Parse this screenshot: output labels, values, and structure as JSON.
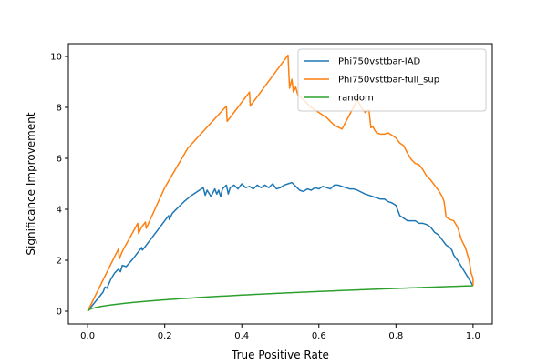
{
  "chart_data": {
    "type": "line",
    "xlabel": "True Positive Rate",
    "ylabel": "Significance Improvement",
    "xlim": [
      -0.05,
      1.05
    ],
    "ylim": [
      -0.5,
      10.5
    ],
    "x_ticks": [
      0.0,
      0.2,
      0.4,
      0.6,
      0.8,
      1.0
    ],
    "x_tick_labels": [
      "0.0",
      "0.2",
      "0.4",
      "0.6",
      "0.8",
      "1.0"
    ],
    "y_ticks": [
      0,
      2,
      4,
      6,
      8,
      10
    ],
    "y_tick_labels": [
      "0",
      "2",
      "4",
      "6",
      "8",
      "10"
    ],
    "grid": false,
    "legend_position": "top-right",
    "series": [
      {
        "name": "Phi750vsttbar-IAD",
        "color": "#1f77b4",
        "points": [
          [
            0.0,
            0.0
          ],
          [
            0.04,
            0.75
          ],
          [
            0.045,
            0.95
          ],
          [
            0.05,
            0.9
          ],
          [
            0.06,
            1.25
          ],
          [
            0.07,
            1.5
          ],
          [
            0.08,
            1.65
          ],
          [
            0.085,
            1.55
          ],
          [
            0.09,
            1.8
          ],
          [
            0.1,
            1.75
          ],
          [
            0.12,
            2.1
          ],
          [
            0.13,
            2.3
          ],
          [
            0.14,
            2.5
          ],
          [
            0.142,
            2.4
          ],
          [
            0.15,
            2.55
          ],
          [
            0.18,
            3.15
          ],
          [
            0.2,
            3.55
          ],
          [
            0.21,
            3.75
          ],
          [
            0.212,
            3.6
          ],
          [
            0.22,
            3.85
          ],
          [
            0.25,
            4.3
          ],
          [
            0.27,
            4.55
          ],
          [
            0.29,
            4.75
          ],
          [
            0.3,
            4.85
          ],
          [
            0.305,
            4.55
          ],
          [
            0.31,
            4.75
          ],
          [
            0.32,
            4.5
          ],
          [
            0.33,
            4.8
          ],
          [
            0.335,
            4.6
          ],
          [
            0.34,
            4.75
          ],
          [
            0.345,
            4.5
          ],
          [
            0.35,
            4.8
          ],
          [
            0.36,
            4.95
          ],
          [
            0.365,
            4.6
          ],
          [
            0.37,
            4.85
          ],
          [
            0.38,
            4.95
          ],
          [
            0.39,
            4.8
          ],
          [
            0.4,
            5.0
          ],
          [
            0.41,
            4.85
          ],
          [
            0.42,
            4.9
          ],
          [
            0.43,
            4.8
          ],
          [
            0.44,
            4.95
          ],
          [
            0.45,
            4.85
          ],
          [
            0.46,
            4.95
          ],
          [
            0.47,
            4.85
          ],
          [
            0.48,
            5.0
          ],
          [
            0.49,
            4.8
          ],
          [
            0.5,
            4.85
          ],
          [
            0.51,
            4.95
          ],
          [
            0.52,
            5.0
          ],
          [
            0.53,
            5.05
          ],
          [
            0.54,
            4.9
          ],
          [
            0.55,
            4.75
          ],
          [
            0.56,
            4.7
          ],
          [
            0.57,
            4.8
          ],
          [
            0.58,
            4.75
          ],
          [
            0.59,
            4.85
          ],
          [
            0.6,
            4.8
          ],
          [
            0.61,
            4.9
          ],
          [
            0.62,
            4.85
          ],
          [
            0.63,
            4.8
          ],
          [
            0.64,
            4.95
          ],
          [
            0.65,
            4.95
          ],
          [
            0.66,
            4.9
          ],
          [
            0.67,
            4.85
          ],
          [
            0.68,
            4.8
          ],
          [
            0.69,
            4.8
          ],
          [
            0.7,
            4.75
          ],
          [
            0.72,
            4.6
          ],
          [
            0.73,
            4.55
          ],
          [
            0.74,
            4.5
          ],
          [
            0.75,
            4.45
          ],
          [
            0.76,
            4.4
          ],
          [
            0.77,
            4.4
          ],
          [
            0.78,
            4.3
          ],
          [
            0.79,
            4.25
          ],
          [
            0.8,
            4.15
          ],
          [
            0.81,
            3.75
          ],
          [
            0.82,
            3.65
          ],
          [
            0.83,
            3.55
          ],
          [
            0.84,
            3.55
          ],
          [
            0.85,
            3.55
          ],
          [
            0.86,
            3.45
          ],
          [
            0.87,
            3.45
          ],
          [
            0.88,
            3.4
          ],
          [
            0.89,
            3.3
          ],
          [
            0.9,
            3.1
          ],
          [
            0.91,
            3.0
          ],
          [
            0.92,
            2.8
          ],
          [
            0.93,
            2.6
          ],
          [
            0.94,
            2.5
          ],
          [
            0.945,
            2.4
          ],
          [
            0.95,
            2.2
          ],
          [
            0.96,
            2.0
          ],
          [
            1.0,
            1.0
          ]
        ]
      },
      {
        "name": "Phi750vsttbar-full_sup",
        "color": "#ff7f0e",
        "points": [
          [
            0.0,
            0.0
          ],
          [
            0.08,
            2.45
          ],
          [
            0.082,
            2.05
          ],
          [
            0.09,
            2.35
          ],
          [
            0.13,
            3.45
          ],
          [
            0.132,
            3.05
          ],
          [
            0.14,
            3.3
          ],
          [
            0.15,
            3.5
          ],
          [
            0.152,
            3.25
          ],
          [
            0.2,
            4.85
          ],
          [
            0.26,
            6.4
          ],
          [
            0.36,
            8.05
          ],
          [
            0.362,
            7.45
          ],
          [
            0.42,
            8.6
          ],
          [
            0.422,
            8.05
          ],
          [
            0.52,
            10.05
          ],
          [
            0.524,
            8.75
          ],
          [
            0.53,
            9.1
          ],
          [
            0.534,
            8.6
          ],
          [
            0.54,
            8.8
          ],
          [
            0.545,
            8.5
          ],
          [
            0.55,
            8.45
          ],
          [
            0.58,
            8.0
          ],
          [
            0.6,
            7.8
          ],
          [
            0.62,
            7.6
          ],
          [
            0.64,
            7.3
          ],
          [
            0.66,
            7.15
          ],
          [
            0.7,
            8.3
          ],
          [
            0.71,
            8.0
          ],
          [
            0.72,
            7.8
          ],
          [
            0.73,
            7.9
          ],
          [
            0.735,
            7.2
          ],
          [
            0.74,
            7.25
          ],
          [
            0.745,
            7.1
          ],
          [
            0.75,
            7.0
          ],
          [
            0.76,
            6.95
          ],
          [
            0.77,
            6.95
          ],
          [
            0.78,
            7.0
          ],
          [
            0.79,
            6.9
          ],
          [
            0.8,
            6.8
          ],
          [
            0.81,
            6.6
          ],
          [
            0.82,
            6.5
          ],
          [
            0.83,
            6.2
          ],
          [
            0.84,
            5.95
          ],
          [
            0.85,
            5.8
          ],
          [
            0.86,
            5.75
          ],
          [
            0.87,
            5.55
          ],
          [
            0.88,
            5.3
          ],
          [
            0.89,
            5.15
          ],
          [
            0.9,
            4.95
          ],
          [
            0.91,
            4.75
          ],
          [
            0.92,
            4.5
          ],
          [
            0.925,
            4.3
          ],
          [
            0.93,
            3.7
          ],
          [
            0.94,
            3.6
          ],
          [
            0.95,
            3.55
          ],
          [
            0.96,
            3.3
          ],
          [
            0.97,
            2.8
          ],
          [
            0.98,
            2.5
          ],
          [
            0.99,
            2.0
          ],
          [
            0.995,
            1.5
          ],
          [
            1.0,
            1.3
          ],
          [
            1.0,
            1.0
          ]
        ]
      },
      {
        "name": "random",
        "color": "#2ca02c",
        "function": "sqrt",
        "x_range": [
          0.0,
          1.0
        ]
      }
    ]
  }
}
